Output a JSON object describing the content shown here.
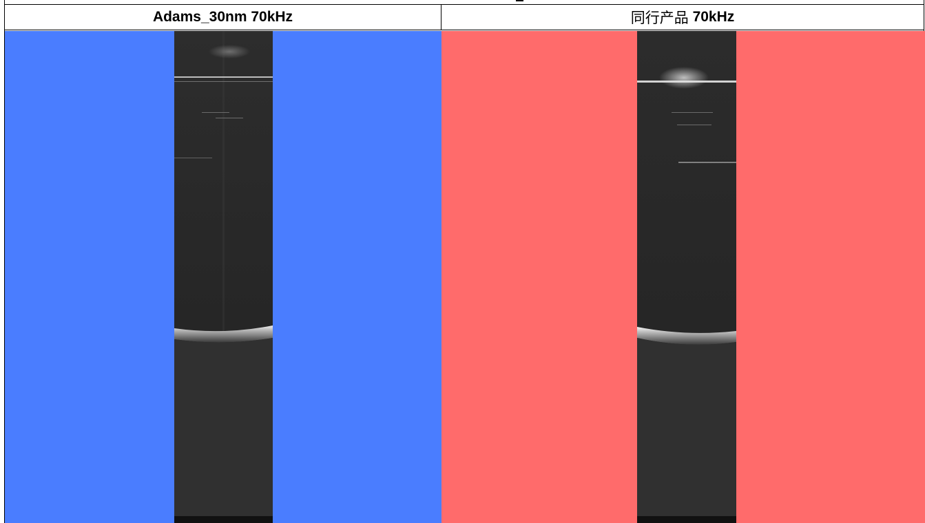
{
  "headers": {
    "left": "Adams_30nm 70kHz",
    "right_cjk": "同行产品",
    "right_rest": "70kHz"
  },
  "colors": {
    "left_background": "#4a7dff",
    "right_background": "#ff6b6b",
    "scan_background": "#2a2a2a"
  },
  "images": {
    "left": "grayscale OCT B-scan with faint horizontal reflections near the top and a bright curved surface band near the lower part",
    "right": "grayscale OCT B-scan with a bright glare line near the top and a bright curved surface band near the lower part"
  }
}
